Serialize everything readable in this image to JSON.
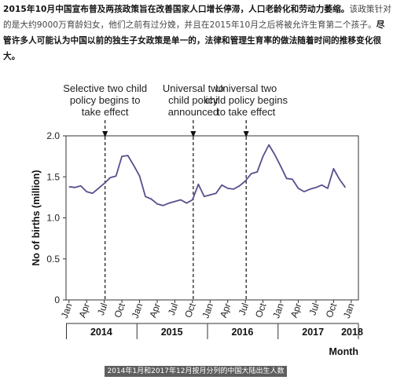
{
  "intro": {
    "lead": "2015年10月中国宣布普及两孩政策旨在改善国家人口增长停滞，人口老龄化和劳动力萎缩。",
    "rest": "该政策针对的是大约9000万育龄妇女，他们之前有过分娩，并且在2015年10月之后将被允许生育第二个孩子。",
    "tail": "尽管许多人可能认为中国以前的独生子女政策是单一的，法律和管理生育率的做法随着时间的推移变化很大。"
  },
  "caption": "2014年1月和2017年12月按月分列的中国大陆出生人数",
  "chart_data": {
    "type": "line",
    "xlabel": "Month",
    "ylabel": "No of births (million)",
    "ylim": [
      0,
      2.0
    ],
    "yticks": [
      "0",
      "0.5",
      "1.0",
      "1.5",
      "2.0"
    ],
    "month_tick_labels": [
      "Jan",
      "Apr",
      "Jul",
      "Oct",
      "Jan",
      "Apr",
      "Jul",
      "Oct",
      "Jan",
      "Apr",
      "Jul",
      "Oct",
      "Jan",
      "Apr",
      "Jul",
      "Oct",
      "Jan"
    ],
    "year_labels": [
      "2014",
      "2015",
      "2016",
      "2017",
      "2018"
    ],
    "series": [
      {
        "color": "#5a4e8c",
        "values": [
          1.38,
          1.37,
          1.39,
          1.32,
          1.3,
          1.36,
          1.42,
          1.49,
          1.51,
          1.75,
          1.76,
          1.64,
          1.51,
          1.26,
          1.23,
          1.17,
          1.15,
          1.18,
          1.2,
          1.22,
          1.18,
          1.22,
          1.41,
          1.26,
          1.28,
          1.3,
          1.4,
          1.36,
          1.35,
          1.39,
          1.45,
          1.54,
          1.56,
          1.75,
          1.89,
          1.77,
          1.63,
          1.48,
          1.47,
          1.36,
          1.32,
          1.35,
          1.37,
          1.4,
          1.36,
          1.6,
          1.47,
          1.37
        ]
      }
    ],
    "annotations": [
      {
        "month_index": 6,
        "lines": [
          "Selective two child",
          "policy begins to",
          "take effect"
        ]
      },
      {
        "month_index": 21,
        "lines": [
          "Universal two",
          "child policy",
          "announced"
        ]
      },
      {
        "month_index": 30,
        "lines": [
          "Universal two",
          "child policy begins",
          "to take effect"
        ]
      }
    ]
  }
}
